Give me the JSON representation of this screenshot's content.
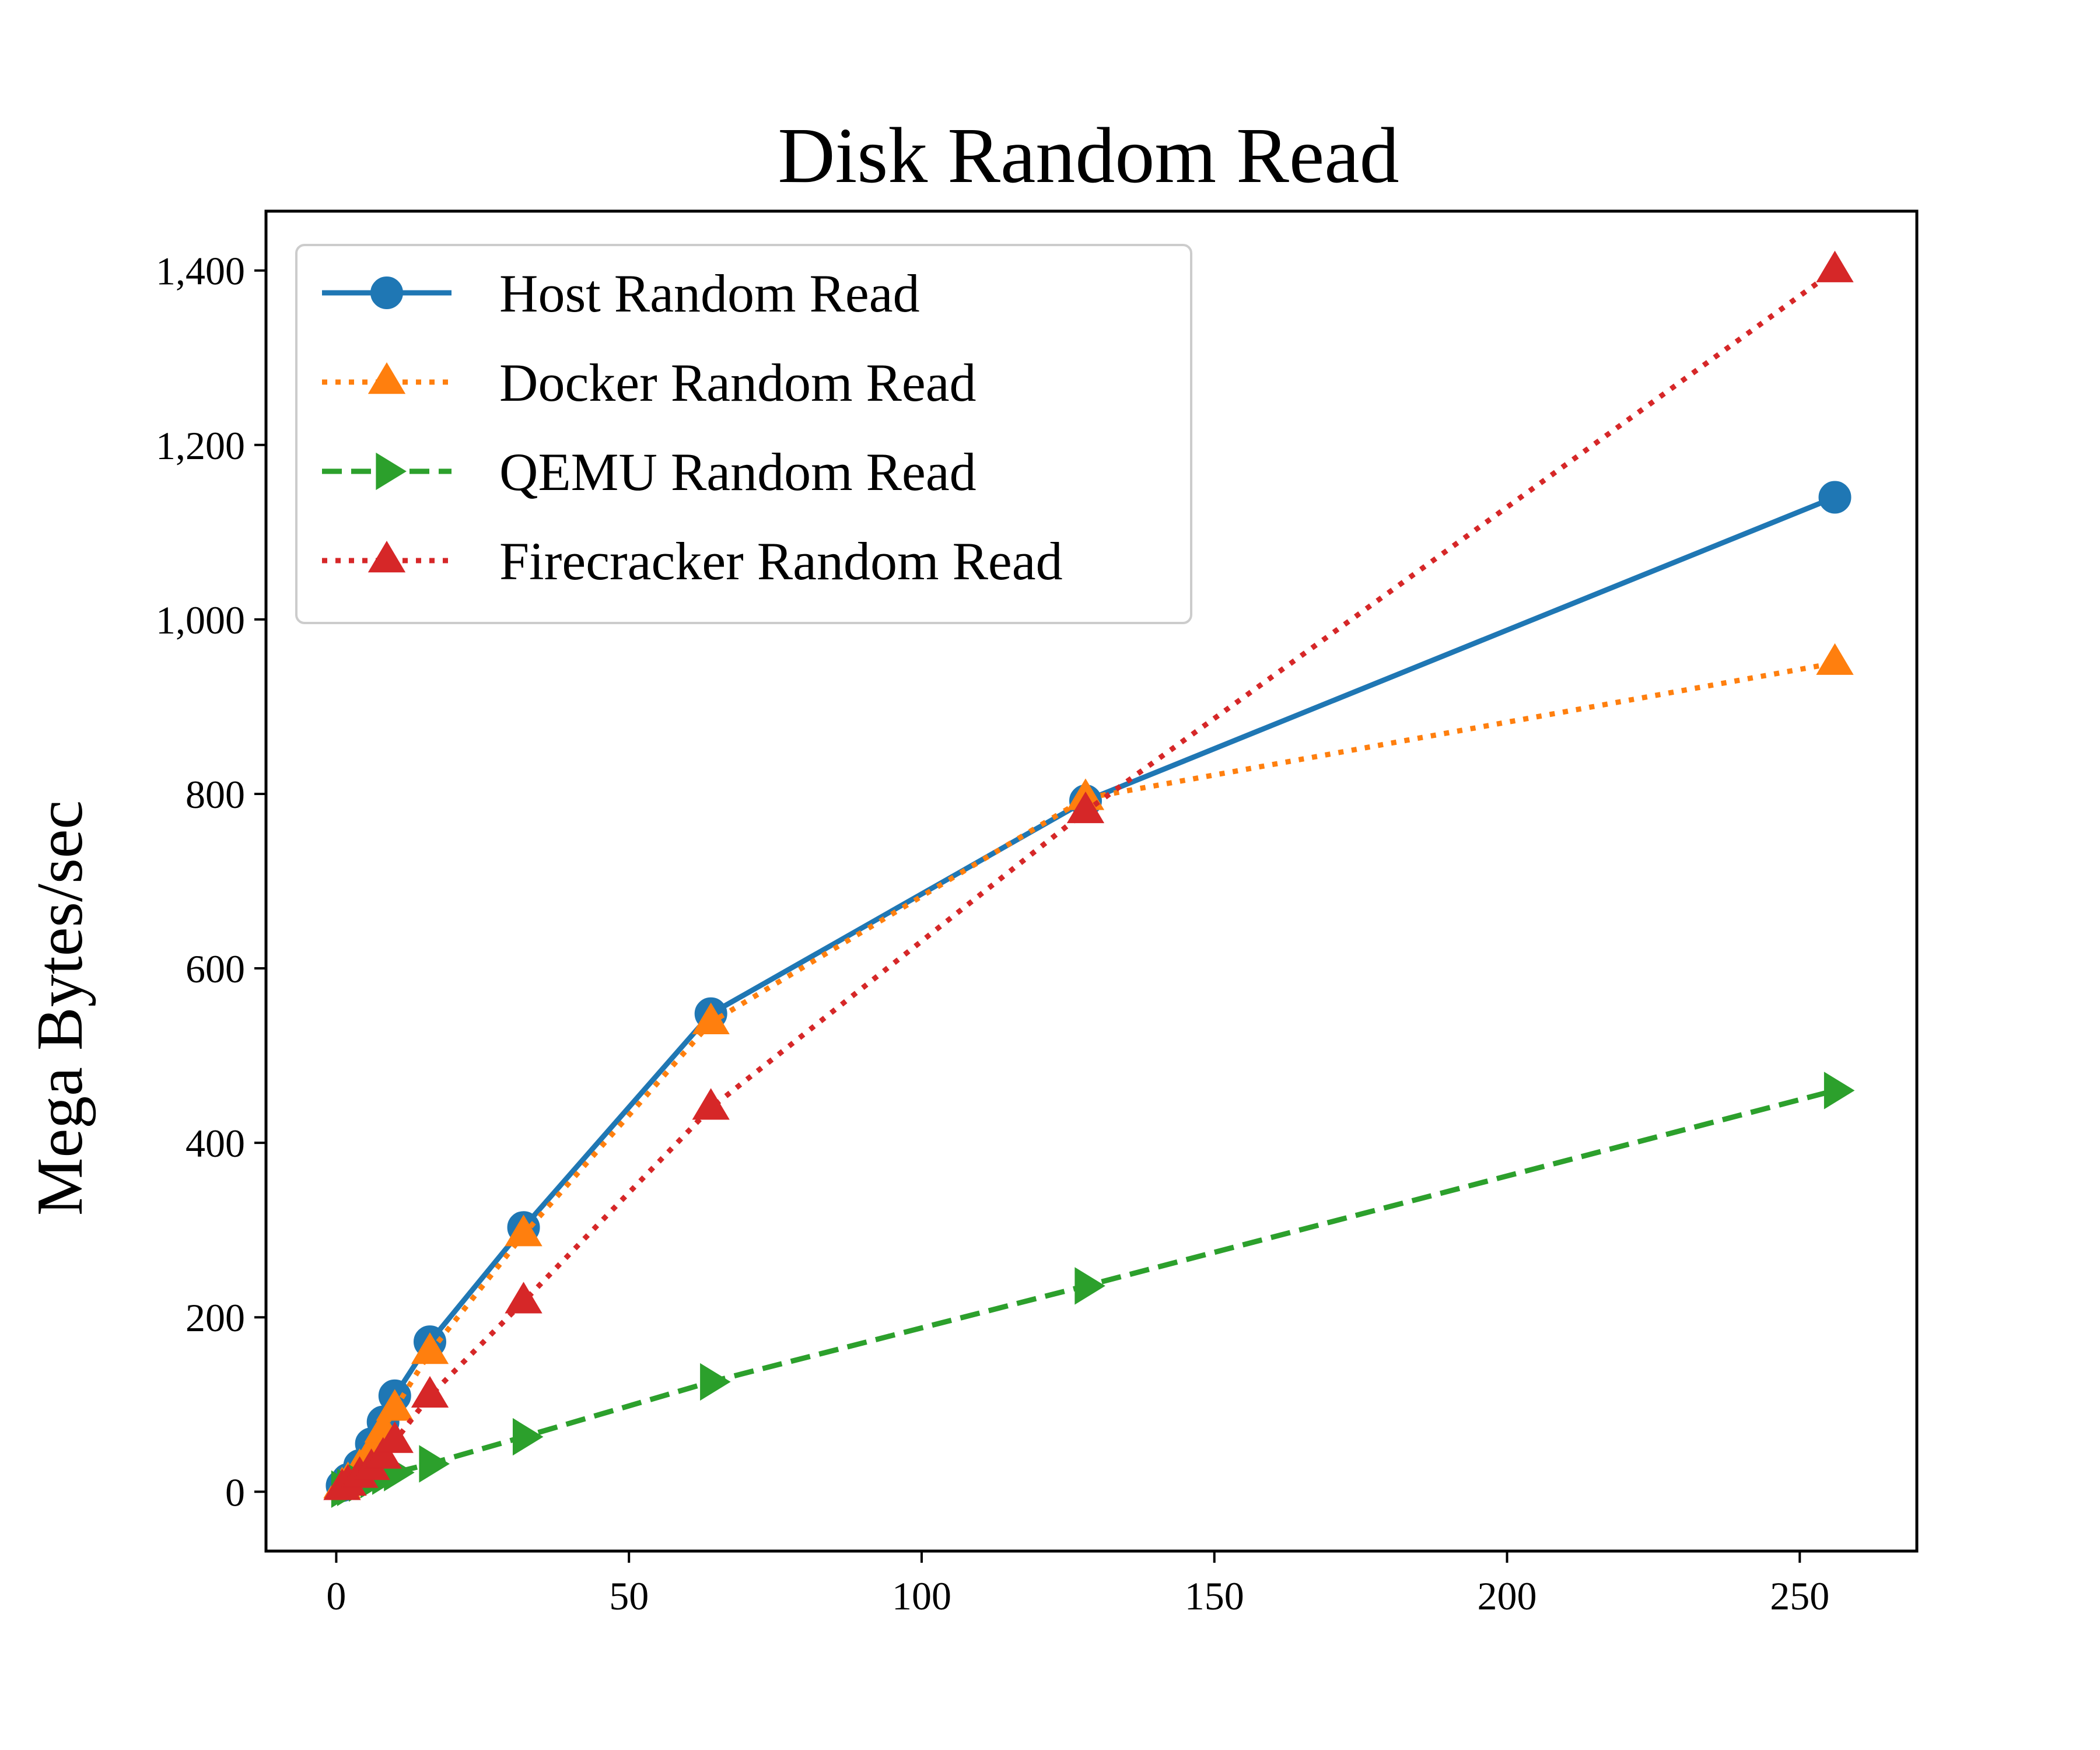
{
  "chart_data": {
    "type": "line",
    "title": "Disk Random Read",
    "xlabel": "",
    "ylabel": "Mega Bytes/sec",
    "xlim": [
      -12,
      270
    ],
    "ylim": [
      -68,
      1468
    ],
    "xticks": [
      0,
      50,
      100,
      150,
      200,
      250
    ],
    "yticks": [
      0,
      200,
      400,
      600,
      800,
      1000,
      1200,
      1400
    ],
    "xtick_labels": [
      "0",
      "50",
      "100",
      "150",
      "200",
      "250"
    ],
    "ytick_labels": [
      "0",
      "200",
      "400",
      "600",
      "800",
      "1,000",
      "1,200",
      "1,400"
    ],
    "grid": false,
    "legend_position": "upper-left",
    "x": [
      1,
      2,
      4,
      6,
      8,
      10,
      16,
      32,
      64,
      128,
      256
    ],
    "series": [
      {
        "name": "Host Random Read",
        "color": "#1f77b4",
        "line_style": "solid",
        "marker": "circle",
        "values": [
          7,
          14,
          30,
          55,
          80,
          110,
          172,
          303,
          548,
          792,
          1140
        ]
      },
      {
        "name": "Docker Random Read",
        "color": "#ff7f0e",
        "line_style": "dotted",
        "marker": "triangle-up",
        "values": [
          6,
          12,
          27,
          45,
          70,
          95,
          160,
          295,
          538,
          795,
          950
        ]
      },
      {
        "name": "QEMU Random Read",
        "color": "#2ca02c",
        "line_style": "dashed",
        "marker": "triangle-right",
        "values": [
          3,
          5,
          10,
          14,
          18,
          22,
          32,
          63,
          126,
          236,
          460
        ]
      },
      {
        "name": "Firecracker Random Read",
        "color": "#d62728",
        "line_style": "dotted",
        "marker": "triangle-up",
        "values": [
          4,
          9,
          18,
          27,
          40,
          58,
          110,
          218,
          440,
          780,
          1400
        ]
      }
    ]
  }
}
